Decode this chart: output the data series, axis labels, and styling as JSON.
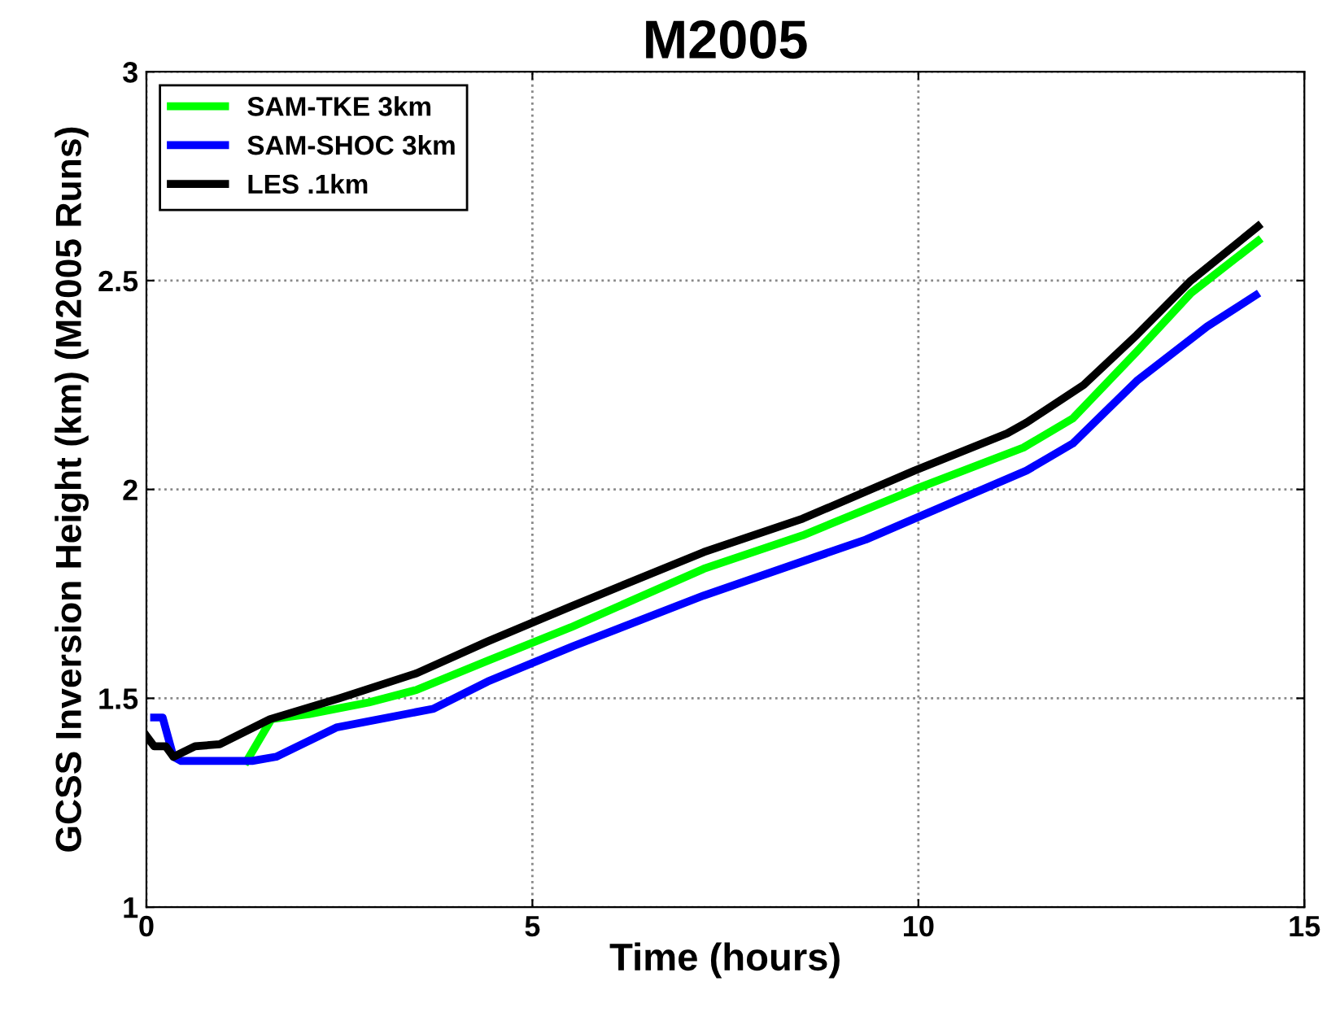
{
  "chart_data": {
    "type": "line",
    "title": "M2005",
    "xlabel": "Time (hours)",
    "ylabel": "GCSS Inversion Height (km) (M2005 Runs)",
    "xlim": [
      0,
      15
    ],
    "xticks": [
      0,
      5,
      10,
      15
    ],
    "ylim": [
      1,
      3
    ],
    "yticks": [
      1,
      1.5,
      2,
      2.5,
      3
    ],
    "grid": true,
    "legend": "top left",
    "line_style": "solid",
    "marker": "none",
    "series": [
      {
        "name": "SAM-TKE 3km",
        "color": "#00ff00",
        "x": [
          1.3,
          1.62,
          2.1,
          2.88,
          3.5,
          4.42,
          5.5,
          7.22,
          8.5,
          9.95,
          11.36,
          12.0,
          12.83,
          13.53,
          14.4
        ],
        "values": [
          1.35,
          1.45,
          1.462,
          1.49,
          1.52,
          1.59,
          1.67,
          1.81,
          1.89,
          2.0,
          2.1,
          2.17,
          2.33,
          2.47,
          2.595
        ]
      },
      {
        "name": "SAM-SHOC 3km",
        "color": "#0000ff",
        "x": [
          0.1,
          0.21,
          0.35,
          0.45,
          1.37,
          1.68,
          2.46,
          3.16,
          3.72,
          4.42,
          5.53,
          7.22,
          9.32,
          9.95,
          11.4,
          12.0,
          12.83,
          13.74,
          14.37
        ],
        "values": [
          1.454,
          1.454,
          1.36,
          1.35,
          1.35,
          1.36,
          1.43,
          1.455,
          1.475,
          1.54,
          1.625,
          1.746,
          1.88,
          1.93,
          2.045,
          2.11,
          2.26,
          2.39,
          2.465
        ]
      },
      {
        "name": "LES .1km",
        "color": "#000000",
        "x": [
          0,
          0.1,
          0.25,
          0.35,
          0.63,
          0.95,
          1.6,
          2.5,
          3.5,
          4.42,
          5.5,
          7.22,
          8.5,
          9.95,
          11.15,
          11.4,
          12.14,
          12.83,
          13.53,
          14.4
        ],
        "values": [
          1.41,
          1.385,
          1.385,
          1.36,
          1.385,
          1.39,
          1.45,
          1.5,
          1.56,
          1.636,
          1.72,
          1.85,
          1.93,
          2.045,
          2.134,
          2.16,
          2.25,
          2.37,
          2.5,
          2.63
        ]
      }
    ]
  }
}
